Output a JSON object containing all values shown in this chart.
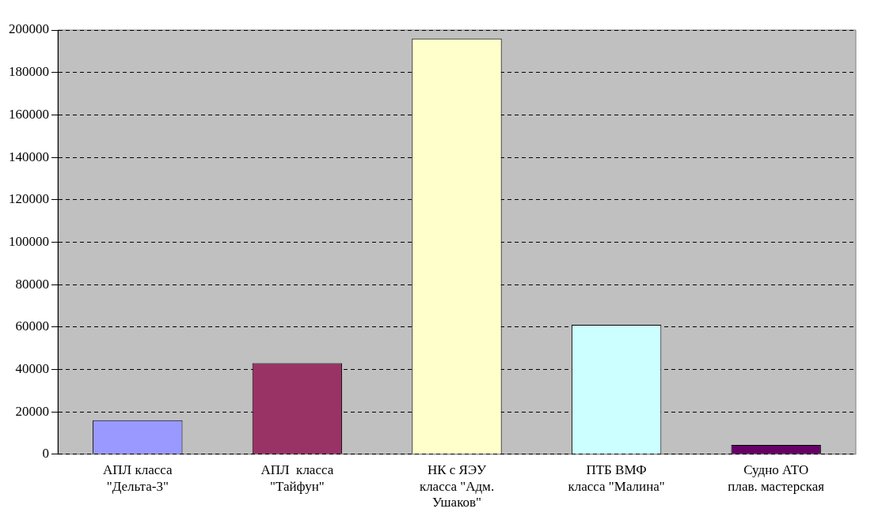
{
  "chart_data": {
    "type": "bar",
    "categories": [
      "АПЛ класса\n\"Дельта-3\"",
      "АПЛ  класса\n\"Тайфун\"",
      "НК с ЯЭУ\nкласса \"Адм.\nУшаков\"",
      "ПТБ ВМФ\nкласса \"Малина\"",
      "Судно АТО\nплав. мастерская"
    ],
    "values": [
      16000,
      43000,
      196000,
      61000,
      4400
    ],
    "colors": [
      "#9999ff",
      "#993366",
      "#ffffcc",
      "#ccffff",
      "#660066"
    ],
    "ylim": [
      0,
      200000
    ],
    "yticks": [
      0,
      20000,
      40000,
      60000,
      80000,
      100000,
      120000,
      140000,
      160000,
      180000,
      200000
    ],
    "grid": "y",
    "line_style": "dashed",
    "legend": false
  }
}
